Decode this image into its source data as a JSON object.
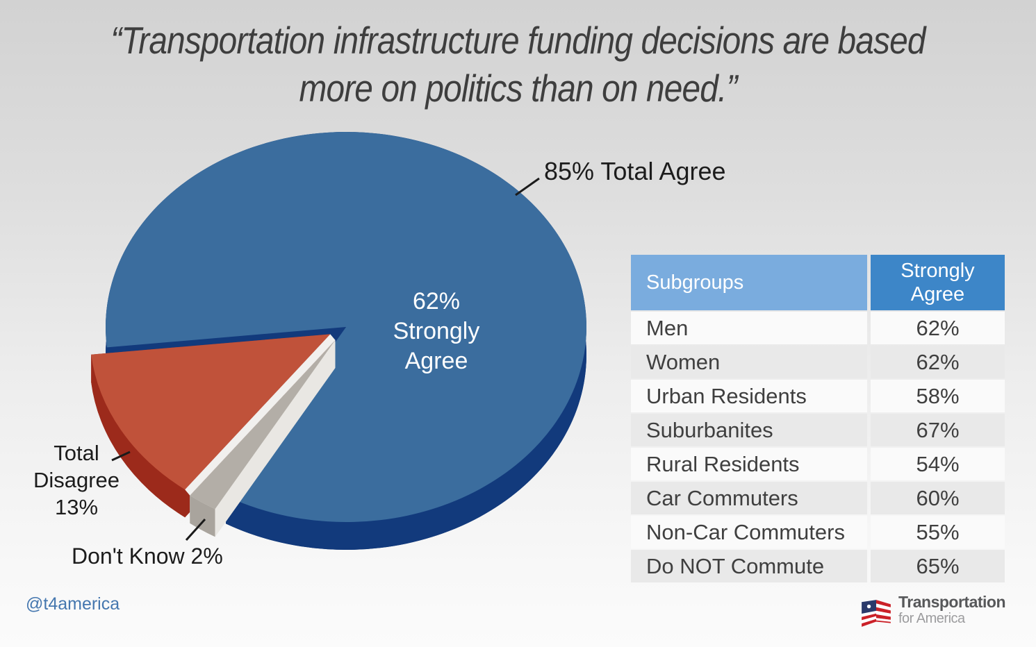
{
  "title": {
    "line1": "“Transportation infrastructure funding decisions are based",
    "line2": "more on politics than on need.”"
  },
  "chart_data": {
    "type": "pie",
    "title": "Transportation infrastructure funding decisions are based more on politics than on need.",
    "units": "percent of respondents",
    "style": "3d-exploded-pie",
    "slices": [
      {
        "label": "Total Agree",
        "value": 85,
        "color": "#3b6d9e",
        "side_color": "#123a7c",
        "callout": "85% Total Agree",
        "inner_label": "62%\nStrongly\nAgree",
        "exploded": false
      },
      {
        "label": "Don't Know",
        "value": 2,
        "color": "#b3aea7",
        "side_color": "#e9e7e3",
        "wall_color": "#a9a49d",
        "callout": "Don't Know 2%",
        "exploded": true
      },
      {
        "label": "Total Disagree",
        "value": 13,
        "color": "#c0523a",
        "side_color": "#9c2a1b",
        "callout": "Total\nDisagree\n13%",
        "exploded": true
      }
    ],
    "annotations": [
      "85% Total Agree",
      "62% Strongly Agree",
      "Total Disagree 13%",
      "Don't Know 2%"
    ],
    "legend_position": "none"
  },
  "table": {
    "headers": {
      "subgroups": "Subgroups",
      "strongly_agree": "Strongly\nAgree"
    },
    "header_colors": {
      "subgroups_bg": "#7aacde",
      "strongly_agree_bg": "#3d86c8"
    },
    "rows": [
      {
        "label": "Men",
        "value": "62%"
      },
      {
        "label": "Women",
        "value": "62%"
      },
      {
        "label": "Urban Residents",
        "value": "58%"
      },
      {
        "label": "Suburbanites",
        "value": "67%"
      },
      {
        "label": "Rural Residents",
        "value": "54%"
      },
      {
        "label": "Car Commuters",
        "value": "60%"
      },
      {
        "label": "Non-Car Commuters",
        "value": "55%"
      },
      {
        "label": "Do NOT Commute",
        "value": "65%"
      }
    ]
  },
  "footer": {
    "twitter_handle": "@t4america",
    "logo": {
      "line1": "Transportation",
      "line2": "for America"
    }
  }
}
